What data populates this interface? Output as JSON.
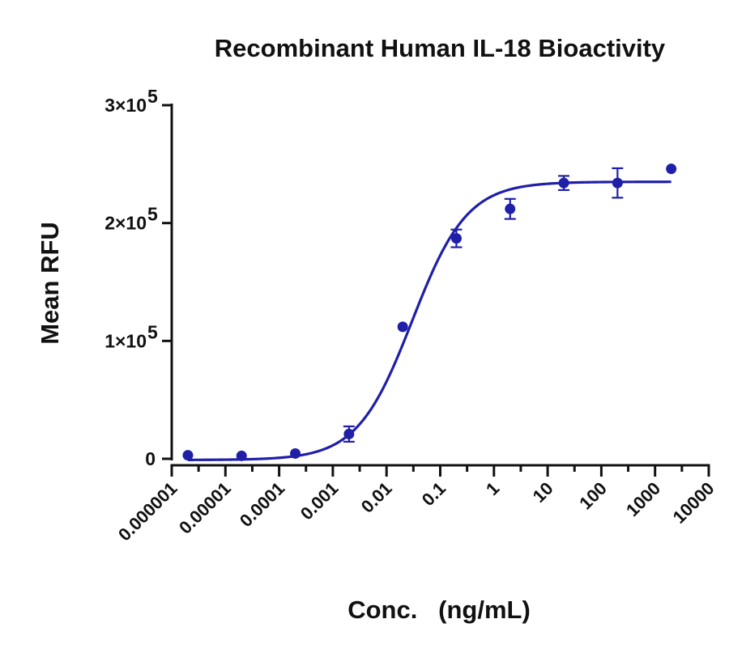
{
  "chart_data": {
    "type": "scatter",
    "title": "Recombinant Human IL-18 Bioactivity",
    "xlabel": "Conc.   (ng/mL)",
    "ylabel": "Mean RFU",
    "x_scale": "log",
    "xlim": [
      1e-06,
      10000
    ],
    "ylim": [
      0,
      300000
    ],
    "x_tick_values": [
      1e-06,
      1e-05,
      0.0001,
      0.001,
      0.01,
      0.1,
      1,
      10,
      100,
      1000,
      10000
    ],
    "x_tick_labels": [
      "0.000001",
      "0.00001",
      "0.0001",
      "0.001",
      "0.01",
      "0.1",
      "1",
      "10",
      "100",
      "1000",
      "10000"
    ],
    "y_ticks": [
      {
        "value": 0,
        "mantissa": "0",
        "exponent": ""
      },
      {
        "value": 100000,
        "mantissa": "1×10",
        "exponent": "5"
      },
      {
        "value": 200000,
        "mantissa": "2×10",
        "exponent": "5"
      },
      {
        "value": 300000,
        "mantissa": "3×10",
        "exponent": "5"
      }
    ],
    "grid": false,
    "legend": "none",
    "series": [
      {
        "color": "#1f1fa8",
        "x": [
          2e-06,
          2e-05,
          0.0002,
          0.002,
          0.02,
          0.2,
          2,
          20,
          200,
          2000
        ],
        "y": [
          3000,
          2500,
          4500,
          21000,
          112000,
          187000,
          212000,
          234000,
          234000,
          246000
        ],
        "error": [
          0,
          0,
          0,
          6500,
          0,
          7500,
          8500,
          6000,
          12500,
          0
        ]
      }
    ],
    "fit_curve": {
      "color": "#1f1fa8",
      "model": "4-parameter logistic",
      "bottom": -1000,
      "top": 235000,
      "ec50": 0.03,
      "hill": 0.85,
      "x_range": [
        2e-06,
        2000
      ]
    }
  }
}
